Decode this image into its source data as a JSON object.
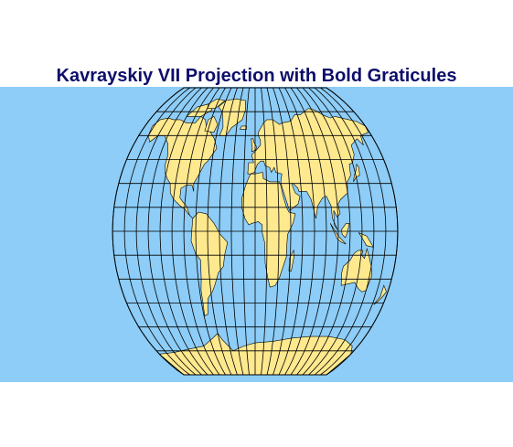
{
  "title": "Kavrayskiy VII Projection with Bold Graticules",
  "colors": {
    "title": "#0d0d6b",
    "ocean": "#8dcdf7",
    "land": "#ffe98f",
    "borders": "#000000",
    "graticule": "#000000"
  },
  "map": {
    "projection": "Kavrayskiy VII",
    "graticule_spacing_deg": 15,
    "meridians_deg": [
      -180,
      -165,
      -150,
      -135,
      -120,
      -105,
      -90,
      -75,
      -60,
      -45,
      -30,
      -15,
      0,
      15,
      30,
      45,
      60,
      75,
      90,
      105,
      120,
      135,
      150,
      165,
      180
    ],
    "parallels_deg": [
      -90,
      -75,
      -60,
      -45,
      -30,
      -15,
      0,
      15,
      30,
      45,
      60,
      75,
      90
    ],
    "continents": [
      "North America",
      "South America",
      "Europe",
      "Africa",
      "Asia",
      "Australia",
      "Antarctica",
      "Greenland"
    ]
  }
}
